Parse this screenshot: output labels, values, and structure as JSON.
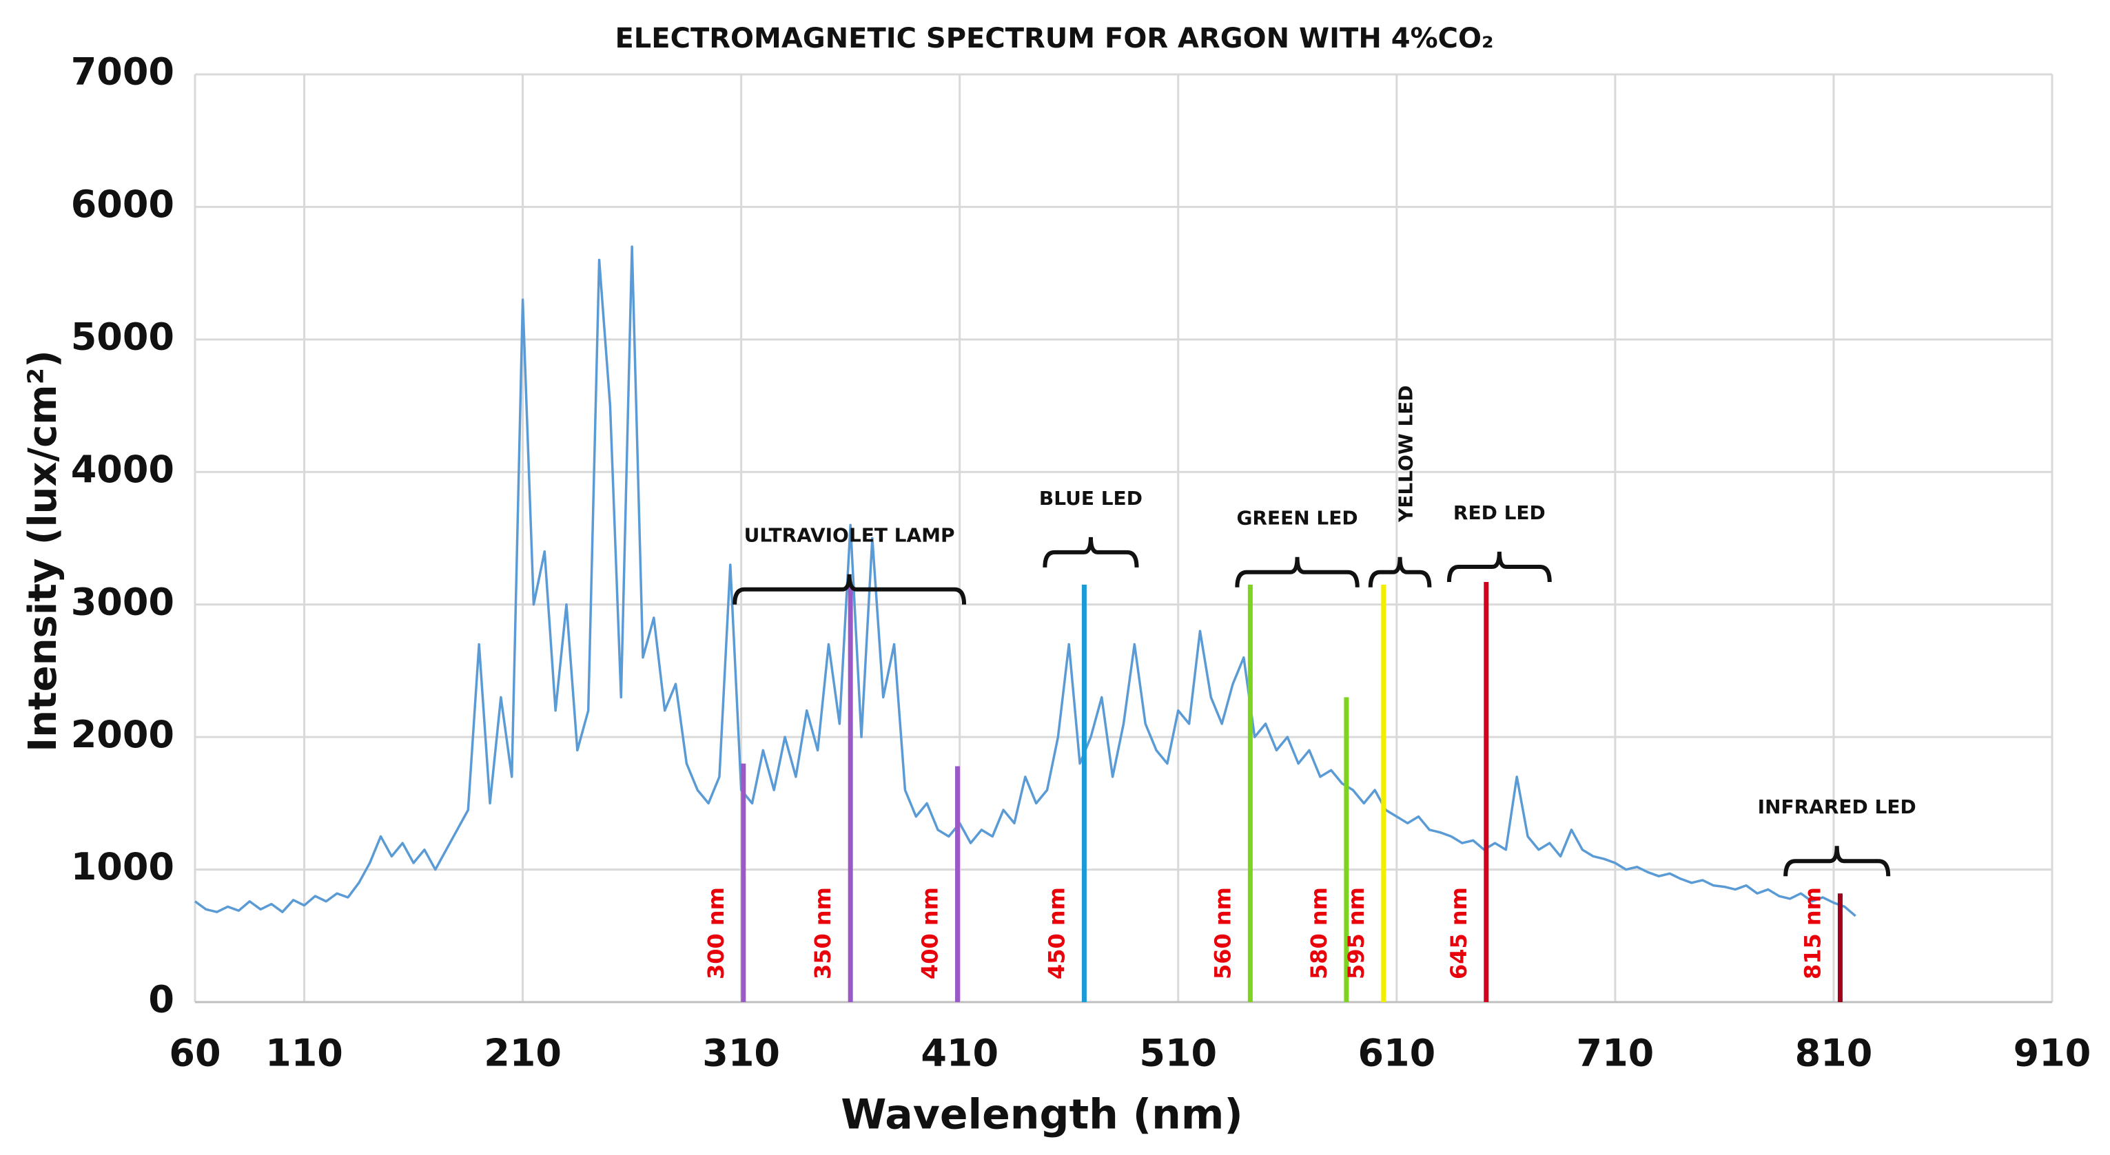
{
  "chart_data": {
    "type": "line",
    "title": "ELECTROMAGNETIC SPECTRUM FOR ARGON WITH 4%CO₂",
    "xlabel": "Wavelength (nm)",
    "ylabel": "Intensity (lux/cm²)",
    "xlim": [
      60,
      910
    ],
    "xticks": [
      60,
      110,
      210,
      310,
      410,
      510,
      610,
      710,
      810,
      910
    ],
    "ylim": [
      0,
      7000
    ],
    "yticks": [
      0,
      1000,
      2000,
      3000,
      4000,
      5000,
      6000,
      7000
    ],
    "grid": true,
    "series": [
      {
        "color": "#5b9bd5",
        "x": [
          60,
          65,
          70,
          75,
          80,
          85,
          90,
          95,
          100,
          105,
          110,
          115,
          120,
          125,
          130,
          135,
          140,
          145,
          150,
          155,
          160,
          165,
          170,
          175,
          180,
          185,
          190,
          195,
          200,
          205,
          210,
          215,
          220,
          225,
          230,
          235,
          240,
          245,
          250,
          255,
          260,
          265,
          270,
          275,
          280,
          285,
          290,
          295,
          300,
          305,
          310,
          315,
          320,
          325,
          330,
          335,
          340,
          345,
          350,
          355,
          360,
          365,
          370,
          375,
          380,
          385,
          390,
          395,
          400,
          405,
          410,
          415,
          420,
          425,
          430,
          435,
          440,
          445,
          450,
          455,
          460,
          465,
          470,
          475,
          480,
          485,
          490,
          495,
          500,
          505,
          510,
          515,
          520,
          525,
          530,
          535,
          540,
          545,
          550,
          555,
          560,
          565,
          570,
          575,
          580,
          585,
          590,
          595,
          600,
          605,
          610,
          615,
          620,
          625,
          630,
          635,
          640,
          645,
          650,
          655,
          660,
          665,
          670,
          675,
          680,
          685,
          690,
          695,
          700,
          705,
          710,
          715,
          720,
          725,
          730,
          735,
          740,
          745,
          750,
          755,
          760,
          765,
          770,
          775,
          780,
          785,
          790,
          795,
          800,
          805,
          810,
          815,
          820
        ],
        "values": [
          760,
          700,
          680,
          720,
          690,
          760,
          700,
          740,
          680,
          770,
          730,
          800,
          760,
          820,
          790,
          900,
          1050,
          1250,
          1100,
          1200,
          1050,
          1150,
          1000,
          1150,
          1300,
          1450,
          2700,
          1500,
          2300,
          1700,
          5300,
          3000,
          3400,
          2200,
          3000,
          1900,
          2200,
          5600,
          4500,
          2300,
          5700,
          2600,
          2900,
          2200,
          2400,
          1800,
          1600,
          1500,
          1700,
          3300,
          1600,
          1500,
          1900,
          1600,
          2000,
          1700,
          2200,
          1900,
          2700,
          2100,
          3600,
          2000,
          3500,
          2300,
          2700,
          1600,
          1400,
          1500,
          1300,
          1250,
          1350,
          1200,
          1300,
          1250,
          1450,
          1350,
          1700,
          1500,
          1600,
          2000,
          2700,
          1800,
          2000,
          2300,
          1700,
          2100,
          2700,
          2100,
          1900,
          1800,
          2200,
          2100,
          2800,
          2300,
          2100,
          2400,
          2600,
          2000,
          2100,
          1900,
          2000,
          1800,
          1900,
          1700,
          1750,
          1650,
          1600,
          1500,
          1600,
          1450,
          1400,
          1350,
          1400,
          1300,
          1280,
          1250,
          1200,
          1220,
          1150,
          1200,
          1150,
          1700,
          1250,
          1150,
          1200,
          1100,
          1300,
          1150,
          1100,
          1080,
          1050,
          1000,
          1020,
          980,
          950,
          970,
          930,
          900,
          920,
          880,
          870,
          850,
          880,
          820,
          850,
          800,
          780,
          820,
          760,
          790,
          750,
          720,
          650
        ]
      }
    ],
    "markers": [
      {
        "label": "300 nm",
        "x": 311,
        "top": 1800,
        "color": "#9b59c6"
      },
      {
        "label": "350 nm",
        "x": 360,
        "top": 3150,
        "color": "#9b59c6"
      },
      {
        "label": "400 nm",
        "x": 409,
        "top": 1780,
        "color": "#9b59c6"
      },
      {
        "label": "450 nm",
        "x": 467,
        "top": 3150,
        "color": "#1a9ad6"
      },
      {
        "label": "560 nm",
        "x": 543,
        "top": 3150,
        "color": "#7ed321"
      },
      {
        "label": "580 nm",
        "x": 587,
        "top": 2300,
        "color": "#7ed321"
      },
      {
        "label": "595 nm",
        "x": 604,
        "top": 3150,
        "color": "#f2ee00"
      },
      {
        "label": "645 nm",
        "x": 651,
        "top": 3170,
        "color": "#d0021b"
      },
      {
        "label": "815 nm",
        "x": 813,
        "top": 820,
        "color": "#a0001a"
      }
    ],
    "brackets": [
      {
        "label": "ULTRAVIOLET LAMP",
        "x0": 307,
        "x1": 412,
        "y": 3000
      },
      {
        "label": "BLUE LED",
        "x0": 449,
        "x1": 491,
        "y": 3280
      },
      {
        "label": "GREEN LED",
        "x0": 537,
        "x1": 592,
        "y": 3130
      },
      {
        "label": "YELLOW LED",
        "x0": 598,
        "x1": 625,
        "y": 3130,
        "vertical": true
      },
      {
        "label": "RED LED",
        "x0": 634,
        "x1": 680,
        "y": 3170
      },
      {
        "label": "INFRARED LED",
        "x0": 788,
        "x1": 835,
        "y": 950
      }
    ]
  }
}
